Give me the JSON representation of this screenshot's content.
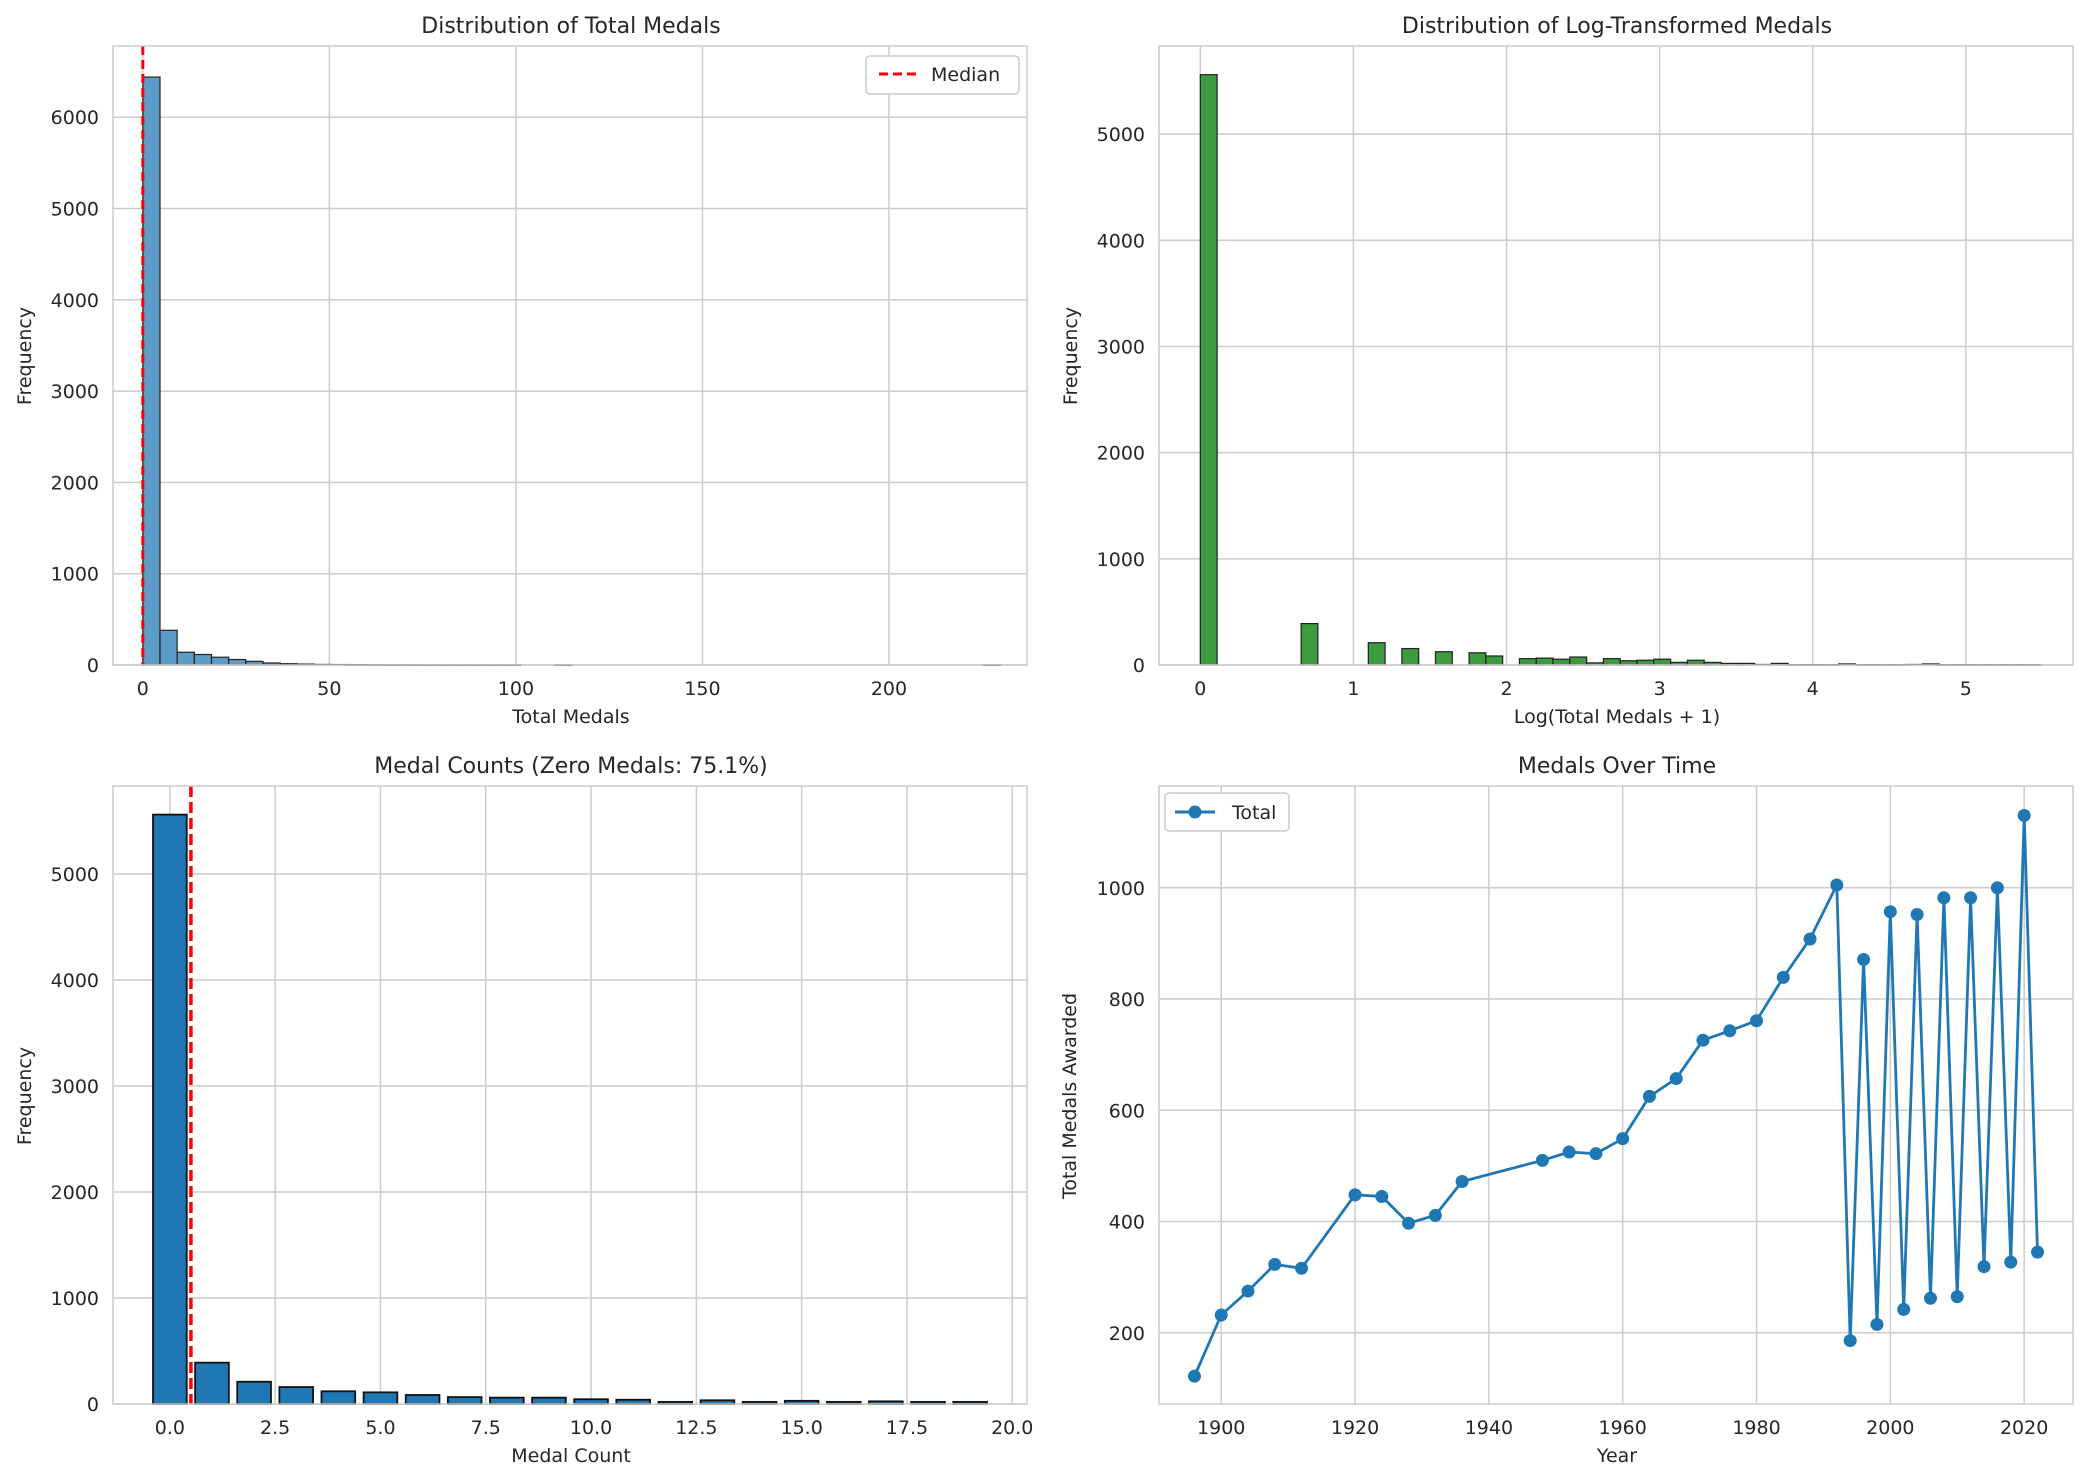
{
  "chart_data": [
    {
      "type": "bar",
      "title": "Distribution of Total Medals",
      "xlabel": "Total Medals",
      "ylabel": "Frequency",
      "xlim": [
        -8,
        237
      ],
      "ylim": [
        0,
        6780
      ],
      "xticks": [
        0,
        50,
        100,
        150,
        200
      ],
      "yticks": [
        0,
        1000,
        2000,
        3000,
        4000,
        5000,
        6000
      ],
      "bin_width": 4.6,
      "bins_start": [
        0,
        4.6,
        9.2,
        13.8,
        18.4,
        23,
        27.6,
        32.2,
        36.8,
        41.4,
        46,
        50.6,
        55.2,
        59.8,
        64.4,
        69,
        73.6,
        78.2,
        82.8,
        87.4,
        92,
        96.6,
        101.2,
        105.8,
        110.4,
        115,
        119.6,
        124.2,
        128.8,
        133.4,
        138,
        142.6,
        147.2,
        151.8,
        156.4,
        161,
        165.6,
        170.2,
        174.8,
        179.4,
        184,
        188.6,
        193.2,
        197.8,
        202.4,
        207,
        211.6,
        216.2,
        220.8,
        225.4
      ],
      "values": [
        6440,
        380,
        140,
        115,
        85,
        60,
        40,
        22,
        14,
        10,
        6,
        5,
        4,
        3,
        2,
        2,
        1,
        1,
        1,
        1,
        1,
        1,
        0,
        0,
        1,
        0,
        0,
        0,
        0,
        0,
        0,
        0,
        0,
        0,
        0,
        0,
        0,
        0,
        0,
        0,
        0,
        0,
        0,
        0,
        0,
        0,
        0,
        0,
        0,
        1
      ],
      "bar_color": "#5b9cc8",
      "median_line": {
        "x": 0,
        "color": "#ff0000",
        "style": "dashed",
        "label": "Median"
      },
      "legend": {
        "position": "upper right",
        "entries": [
          "Median"
        ]
      },
      "grid": true
    },
    {
      "type": "bar",
      "title": "Distribution of Log-Transformed Medals",
      "xlabel": "Log(Total Medals + 1)",
      "ylabel": "Frequency",
      "xlim": [
        -0.27,
        5.7
      ],
      "ylim": [
        0,
        5830
      ],
      "xticks": [
        0,
        1,
        2,
        3,
        4,
        5
      ],
      "yticks": [
        0,
        1000,
        2000,
        3000,
        4000,
        5000
      ],
      "bin_width": 0.1097,
      "bins_start": [
        0,
        0.1097,
        0.2194,
        0.3291,
        0.4388,
        0.5485,
        0.6582,
        0.7679,
        0.8776,
        0.9873,
        1.097,
        1.2067,
        1.3164,
        1.4261,
        1.5358,
        1.6455,
        1.7552,
        1.8649,
        1.9746,
        2.0843,
        2.194,
        2.3037,
        2.4134,
        2.5231,
        2.6328,
        2.7425,
        2.8522,
        2.9619,
        3.0716,
        3.1813,
        3.291,
        3.4007,
        3.5104,
        3.6201,
        3.7298,
        3.8395,
        3.9492,
        4.0589,
        4.1686,
        4.2783,
        4.388,
        4.4977,
        4.6074,
        4.7171,
        4.8268,
        4.9365,
        5.0462,
        5.1559,
        5.2656,
        5.3753
      ],
      "values": [
        5560,
        0,
        0,
        0,
        0,
        0,
        390,
        0,
        0,
        0,
        210,
        0,
        155,
        0,
        125,
        0,
        115,
        85,
        0,
        60,
        65,
        55,
        75,
        20,
        60,
        40,
        45,
        55,
        25,
        45,
        25,
        15,
        15,
        5,
        15,
        3,
        3,
        3,
        10,
        3,
        3,
        3,
        5,
        10,
        3,
        3,
        3,
        3,
        3,
        3
      ],
      "bar_color": "#3e9a3e",
      "grid": true
    },
    {
      "type": "bar",
      "title": "Medal Counts (Zero Medals: 75.1%)",
      "xlabel": "Medal Count",
      "ylabel": "Frequency",
      "xlim": [
        -1.35,
        20.35
      ],
      "ylim": [
        0,
        5830
      ],
      "xticks": [
        0.0,
        2.5,
        5.0,
        7.5,
        10.0,
        12.5,
        15.0,
        17.5,
        20.0
      ],
      "xtick_labels": [
        "0.0",
        "2.5",
        "5.0",
        "7.5",
        "10.0",
        "12.5",
        "15.0",
        "17.5",
        "20.0"
      ],
      "yticks": [
        0,
        1000,
        2000,
        3000,
        4000,
        5000
      ],
      "categories": [
        0,
        1,
        2,
        3,
        4,
        5,
        6,
        7,
        8,
        9,
        10,
        11,
        12,
        13,
        14,
        15,
        16,
        17,
        18,
        19
      ],
      "values": [
        5560,
        390,
        210,
        160,
        120,
        110,
        85,
        65,
        60,
        60,
        45,
        40,
        20,
        35,
        20,
        30,
        20,
        25,
        20,
        20
      ],
      "bar_color": "#1f77b4",
      "median_line": {
        "x": 0.5,
        "color": "#ff0000",
        "style": "dashed"
      },
      "grid": true
    },
    {
      "type": "line",
      "title": "Medals Over Time",
      "xlabel": "Year",
      "ylabel": "Total Medals Awarded",
      "xlim": [
        1890.7,
        2027.3
      ],
      "ylim": [
        72,
        1183
      ],
      "xticks": [
        1900,
        1920,
        1940,
        1960,
        1980,
        2000,
        2020
      ],
      "yticks": [
        200,
        400,
        600,
        800,
        1000
      ],
      "series": [
        {
          "name": "Total",
          "color": "#1f77b4",
          "x": [
            1896,
            1900,
            1904,
            1908,
            1912,
            1920,
            1924,
            1928,
            1932,
            1936,
            1948,
            1952,
            1956,
            1960,
            1964,
            1968,
            1972,
            1976,
            1980,
            1984,
            1988,
            1992,
            1994,
            1996,
            1998,
            2000,
            2002,
            2004,
            2006,
            2008,
            2010,
            2012,
            2014,
            2016,
            2018,
            2020,
            2022
          ],
          "y": [
            122,
            232,
            275,
            323,
            316,
            448,
            445,
            397,
            411,
            472,
            510,
            525,
            522,
            549,
            625,
            657,
            726,
            743,
            761,
            839,
            908,
            1005,
            186,
            871,
            215,
            957,
            242,
            952,
            262,
            982,
            265,
            982,
            319,
            1000,
            327,
            1130,
            345
          ]
        }
      ],
      "legend": {
        "position": "upper left",
        "entries": [
          "Total"
        ]
      },
      "grid": true
    }
  ]
}
